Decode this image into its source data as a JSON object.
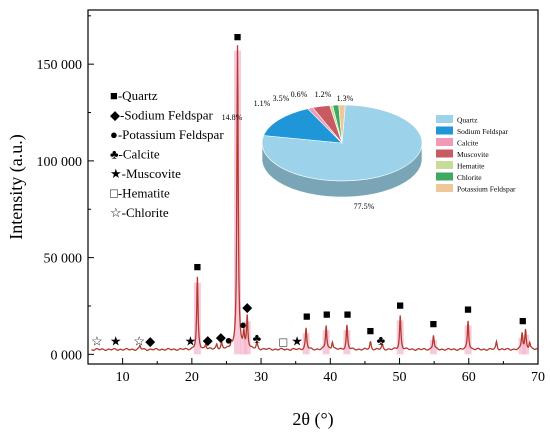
{
  "chart_data": [
    {
      "type": "line",
      "xlabel": "2θ (°)",
      "ylabel": "Intensity (a.u.)",
      "xlim": [
        5,
        70
      ],
      "ylim": [
        -5000,
        178000
      ],
      "x_ticks": [
        10,
        20,
        30,
        40,
        50,
        60,
        70
      ],
      "x_tick_labels": [
        "10",
        "20",
        "30",
        "40",
        "50",
        "60",
        "70"
      ],
      "y_ticks": [
        0,
        50000,
        100000,
        150000
      ],
      "y_tick_labels": [
        "0 000",
        "50 000",
        "100 000",
        "150 000"
      ],
      "series_color": "#b23a2e",
      "highlight_color": "#f5b8cf",
      "baseline": 2500,
      "peaks": [
        {
          "x": 12.5,
          "y": 2000
        },
        {
          "x": 20.8,
          "y": 37000
        },
        {
          "x": 22.0,
          "y": 2500
        },
        {
          "x": 23.6,
          "y": 2500
        },
        {
          "x": 24.3,
          "y": 3000
        },
        {
          "x": 25.7,
          "y": 3000
        },
        {
          "x": 26.6,
          "y": 157000
        },
        {
          "x": 27.5,
          "y": 8000
        },
        {
          "x": 28.0,
          "y": 17000
        },
        {
          "x": 29.4,
          "y": 3500
        },
        {
          "x": 36.5,
          "y": 11000
        },
        {
          "x": 39.4,
          "y": 12500
        },
        {
          "x": 40.3,
          "y": 4000
        },
        {
          "x": 42.4,
          "y": 12500
        },
        {
          "x": 45.8,
          "y": 4000
        },
        {
          "x": 47.5,
          "y": 2500
        },
        {
          "x": 50.1,
          "y": 17500
        },
        {
          "x": 54.9,
          "y": 7500
        },
        {
          "x": 59.9,
          "y": 15000
        },
        {
          "x": 64.0,
          "y": 4000
        },
        {
          "x": 67.7,
          "y": 8500
        },
        {
          "x": 68.2,
          "y": 10000
        },
        {
          "x": 68.8,
          "y": 3500
        }
      ],
      "legend_markers": [
        {
          "symbol": "■",
          "label": "-Quartz"
        },
        {
          "symbol": "◆",
          "label": "-Sodium Feldspar"
        },
        {
          "symbol": "●",
          "label": "-Potassium Feldspar"
        },
        {
          "symbol": "♣",
          "label": "-Calcite"
        },
        {
          "symbol": "★",
          "label": "-Muscovite"
        },
        {
          "symbol": "□",
          "label": "-Hematite"
        },
        {
          "symbol": "☆",
          "label": "-Chlorite"
        }
      ],
      "peak_markers": [
        {
          "symbol": "☆",
          "x": 6.3,
          "y": 2500
        },
        {
          "symbol": "★",
          "x": 9.0,
          "y": 2500
        },
        {
          "symbol": "☆",
          "x": 12.4,
          "y": 2500
        },
        {
          "symbol": "◆",
          "x": 14.0,
          "y": 2500
        },
        {
          "symbol": "★",
          "x": 19.8,
          "y": 2500
        },
        {
          "symbol": "■",
          "x": 20.8,
          "y": 41000
        },
        {
          "symbol": "◆",
          "x": 22.3,
          "y": 3000
        },
        {
          "symbol": "◆",
          "x": 24.2,
          "y": 4500
        },
        {
          "symbol": "●",
          "x": 25.3,
          "y": 3000
        },
        {
          "symbol": "■",
          "x": 26.6,
          "y": 160000
        },
        {
          "symbol": "●",
          "x": 27.4,
          "y": 11000
        },
        {
          "symbol": "◆",
          "x": 28.0,
          "y": 20000
        },
        {
          "symbol": "♣",
          "x": 29.4,
          "y": 4000
        },
        {
          "symbol": "□",
          "x": 33.2,
          "y": 2000
        },
        {
          "symbol": "★",
          "x": 35.2,
          "y": 2500
        },
        {
          "symbol": "■",
          "x": 36.6,
          "y": 15500
        },
        {
          "symbol": "■",
          "x": 39.5,
          "y": 16500
        },
        {
          "symbol": "■",
          "x": 42.5,
          "y": 16500
        },
        {
          "symbol": "■",
          "x": 45.8,
          "y": 8000
        },
        {
          "symbol": "♣",
          "x": 47.3,
          "y": 3000
        },
        {
          "symbol": "■",
          "x": 50.1,
          "y": 21000
        },
        {
          "symbol": "■",
          "x": 54.9,
          "y": 11500
        },
        {
          "symbol": "■",
          "x": 59.9,
          "y": 19000
        },
        {
          "symbol": "■",
          "x": 67.8,
          "y": 13000
        }
      ]
    },
    {
      "type": "pie",
      "slices": [
        {
          "name": "Quartz",
          "value": 77.5,
          "label": "77.5%",
          "color": "#9dd3ea"
        },
        {
          "name": "Sodium Feldspar",
          "value": 14.8,
          "label": "14.8%",
          "color": "#1e96d8"
        },
        {
          "name": "Calcite",
          "value": 1.1,
          "label": "1.1%",
          "color": "#f09ab8"
        },
        {
          "name": "Muscovite",
          "value": 3.5,
          "label": "3.5%",
          "color": "#c85a62"
        },
        {
          "name": "Hematite",
          "value": 0.6,
          "label": "0.6%",
          "color": "#c7dc98"
        },
        {
          "name": "Chlorite",
          "value": 1.2,
          "label": "1.2%",
          "color": "#40a860"
        },
        {
          "name": "Potassium Feldspar",
          "value": 1.3,
          "label": "1.3%",
          "color": "#eec79a"
        }
      ],
      "legend": "right"
    }
  ]
}
